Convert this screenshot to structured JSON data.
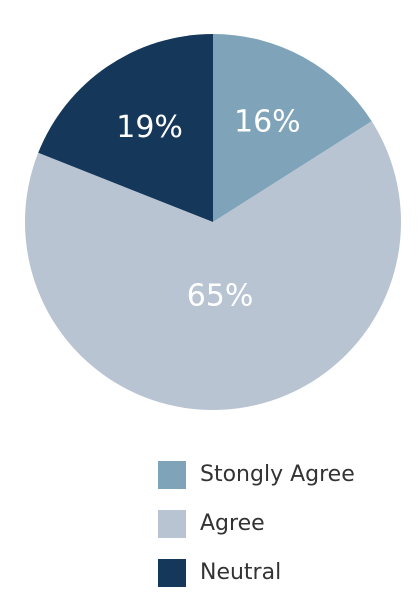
{
  "chart_data": {
    "type": "pie",
    "categories": [
      "Stongly Agree",
      "Agree",
      "Neutral"
    ],
    "values": [
      16,
      65,
      19
    ],
    "value_labels": [
      "16%",
      "65%",
      "19%"
    ],
    "colors": [
      "#7fa3b9",
      "#b8c4d2",
      "#15385a"
    ],
    "start_angle": "top",
    "direction": "clockwise",
    "legend": "bottom-right"
  }
}
